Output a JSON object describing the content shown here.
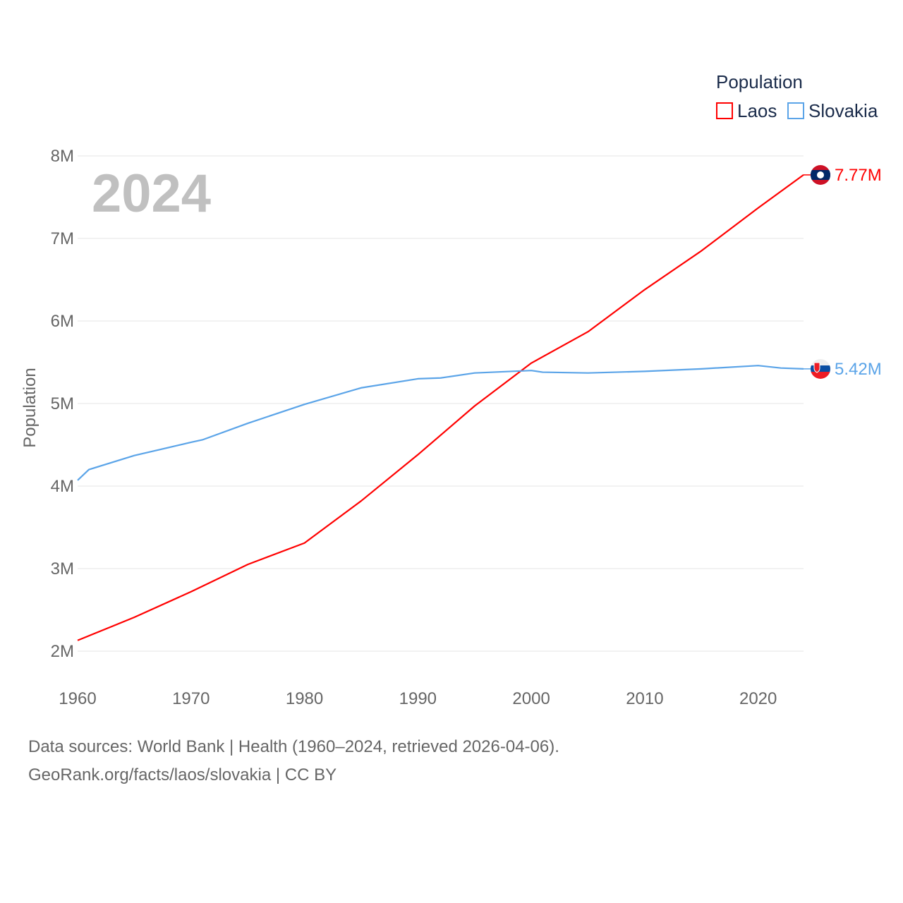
{
  "chart_data": {
    "type": "line",
    "title": "",
    "year_label": "2024",
    "xlabel": "",
    "ylabel": "Population",
    "xlim": [
      1960,
      2024
    ],
    "ylim": [
      2000000,
      8000000
    ],
    "x_ticks": [
      1960,
      1970,
      1980,
      1990,
      2000,
      2010,
      2020
    ],
    "x_tick_labels": [
      "1960",
      "1970",
      "1980",
      "1990",
      "2000",
      "2010",
      "2020"
    ],
    "y_ticks": [
      2000000,
      3000000,
      4000000,
      5000000,
      6000000,
      7000000,
      8000000
    ],
    "y_tick_labels": [
      "2M",
      "3M",
      "4M",
      "5M",
      "6M",
      "7M",
      "8M"
    ],
    "grid": true,
    "legend": {
      "title": "Population",
      "position": "top-right",
      "entries": [
        "Laos",
        "Slovakia"
      ]
    },
    "series": [
      {
        "name": "Laos",
        "color": "#ff0000",
        "end_label": "7.77M",
        "flag": "laos-flag",
        "x": [
          1960,
          1965,
          1970,
          1975,
          1980,
          1985,
          1990,
          1995,
          2000,
          2005,
          2010,
          2015,
          2020,
          2024
        ],
        "values": [
          2130000,
          2410000,
          2720000,
          3050000,
          3310000,
          3820000,
          4380000,
          4970000,
          5490000,
          5870000,
          6380000,
          6850000,
          7370000,
          7770000
        ]
      },
      {
        "name": "Slovakia",
        "color": "#5ba4e8",
        "end_label": "5.42M",
        "flag": "slovakia-flag",
        "x": [
          1960,
          1961,
          1965,
          1970,
          1971,
          1975,
          1980,
          1985,
          1990,
          1992,
          1995,
          2000,
          2001,
          2005,
          2010,
          2015,
          2020,
          2022,
          2024
        ],
        "values": [
          4070000,
          4200000,
          4370000,
          4530000,
          4560000,
          4760000,
          4990000,
          5190000,
          5300000,
          5310000,
          5370000,
          5400000,
          5380000,
          5370000,
          5390000,
          5420000,
          5460000,
          5430000,
          5420000
        ]
      }
    ]
  },
  "footer": {
    "line1": "Data sources: World Bank | Health (1960–2024, retrieved 2026-04-06).",
    "line2": "GeoRank.org/facts/laos/slovakia | CC BY"
  }
}
